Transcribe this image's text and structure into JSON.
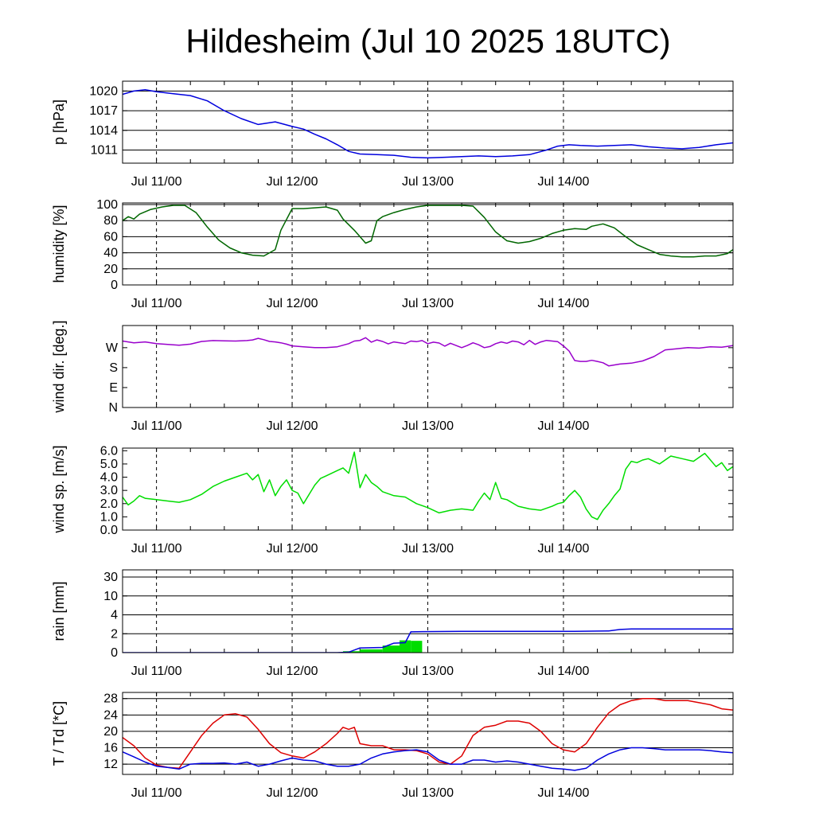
{
  "chart_data": {
    "title": "Hildesheim (Jul 10 2025 18UTC)",
    "type": "line",
    "x_axis": {
      "unit": "hours since Jul 10 18UTC",
      "range": [
        0,
        108
      ],
      "tick_labels": [
        "Jul 11/00",
        "Jul 12/00",
        "Jul 13/00",
        "Jul 14/00"
      ],
      "tick_hours": [
        6,
        30,
        54,
        78
      ]
    },
    "panels": [
      {
        "id": "pressure",
        "type": "line",
        "ylabel": "p [hPa]",
        "ylim": [
          1009,
          1021.5
        ],
        "yticks": [
          1011,
          1014,
          1017,
          1020
        ],
        "ytick_labels": [
          "1011",
          "1014",
          "1017",
          "1020"
        ],
        "grid": true,
        "series": [
          {
            "color": "#0000dd",
            "x": [
              0,
              2,
              4,
              6,
              9,
              12,
              15,
              18,
              21,
              24,
              27,
              30,
              32,
              34,
              36,
              38,
              40,
              42,
              45,
              48,
              51,
              54,
              57,
              60,
              63,
              66,
              69,
              72,
              75,
              77,
              79,
              81,
              84,
              87,
              90,
              93,
              96,
              99,
              102,
              105,
              108
            ],
            "y": [
              1019.5,
              1020.0,
              1020.2,
              1019.9,
              1019.6,
              1019.3,
              1018.5,
              1017.0,
              1015.8,
              1014.9,
              1015.3,
              1014.6,
              1014.2,
              1013.4,
              1012.7,
              1011.8,
              1010.8,
              1010.4,
              1010.3,
              1010.2,
              1009.9,
              1009.8,
              1009.9,
              1010.0,
              1010.1,
              1010.0,
              1010.1,
              1010.3,
              1011.0,
              1011.6,
              1011.8,
              1011.7,
              1011.6,
              1011.7,
              1011.8,
              1011.5,
              1011.3,
              1011.2,
              1011.4,
              1011.8,
              1012.1
            ]
          }
        ]
      },
      {
        "id": "humidity",
        "type": "line",
        "ylabel": "humidity [%]",
        "ylim": [
          0,
          102
        ],
        "yticks": [
          0,
          20,
          40,
          60,
          80,
          100
        ],
        "ytick_labels": [
          "0",
          "20",
          "40",
          "60",
          "80",
          "100"
        ],
        "grid": true,
        "series": [
          {
            "color": "#006600",
            "x": [
              0,
              1,
              2,
              3,
              5,
              7,
              9,
              11,
              13,
              15,
              17,
              19,
              21,
              23,
              25,
              27,
              28,
              30,
              32,
              34,
              36,
              38,
              39,
              41,
              43,
              44,
              45,
              46,
              48,
              50,
              52,
              54,
              56,
              58,
              60,
              62,
              64,
              66,
              68,
              70,
              72,
              74,
              76,
              78,
              80,
              82,
              83,
              85,
              87,
              89,
              91,
              93,
              95,
              97,
              99,
              101,
              103,
              105,
              107,
              108
            ],
            "y": [
              80,
              85,
              82,
              88,
              94,
              97,
              99,
              99,
              90,
              72,
              56,
              46,
              40,
              37,
              36,
              44,
              68,
              95,
              95,
              96,
              97,
              93,
              82,
              68,
              52,
              55,
              80,
              85,
              90,
              94,
              97,
              99,
              99,
              99,
              99,
              98,
              84,
              66,
              55,
              52,
              54,
              58,
              64,
              68,
              70,
              69,
              73,
              76,
              71,
              60,
              50,
              44,
              38,
              36,
              35,
              35,
              36,
              36,
              39,
              44
            ]
          }
        ]
      },
      {
        "id": "wind_direction",
        "type": "line",
        "ylabel": "wind dir. [deg.]",
        "ylim": [
          0,
          370
        ],
        "yticks": [
          0,
          90,
          180,
          270
        ],
        "ytick_labels": [
          "N",
          "E",
          "S",
          "W"
        ],
        "grid": false,
        "series": [
          {
            "color": "#9900cc",
            "x": [
              0,
              2,
              4,
              6,
              8,
              10,
              12,
              14,
              16,
              18,
              20,
              22,
              23,
              24,
              25,
              26,
              27,
              28,
              29,
              30,
              32,
              34,
              36,
              38,
              40,
              41,
              42,
              43,
              44,
              45,
              46,
              47,
              48,
              50,
              51,
              52,
              53,
              54,
              55,
              56,
              57,
              58,
              60,
              61,
              62,
              63,
              64,
              65,
              66,
              67,
              68,
              69,
              70,
              71,
              72,
              73,
              74,
              75,
              77,
              78,
              79,
              80,
              81,
              82,
              83,
              84,
              85,
              86,
              88,
              90,
              92,
              94,
              96,
              98,
              100,
              102,
              104,
              106,
              107,
              108
            ],
            "y": [
              300,
              292,
              296,
              288,
              285,
              281,
              286,
              298,
              302,
              301,
              300,
              302,
              305,
              312,
              306,
              298,
              296,
              292,
              286,
              278,
              274,
              270,
              270,
              274,
              288,
              300,
              303,
              315,
              295,
              305,
              298,
              287,
              296,
              288,
              300,
              297,
              302,
              288,
              295,
              291,
              277,
              290,
              270,
              280,
              292,
              283,
              270,
              275,
              288,
              296,
              290,
              300,
              296,
              283,
              303,
              285,
              296,
              303,
              297,
              278,
              255,
              212,
              208,
              208,
              213,
              208,
              202,
              188,
              196,
              200,
              210,
              230,
              260,
              265,
              270,
              268,
              274,
              272,
              276,
              280
            ]
          }
        ]
      },
      {
        "id": "wind_speed",
        "type": "line",
        "ylabel": "wind sp. [m/s]",
        "ylim": [
          0,
          6.2
        ],
        "yticks": [
          0,
          1,
          2,
          3,
          4,
          5,
          6
        ],
        "ytick_labels": [
          "0.0",
          "1.0",
          "2.0",
          "3.0",
          "4.0",
          "5.0",
          "6.0"
        ],
        "grid": false,
        "series": [
          {
            "color": "#00dd00",
            "x": [
              0,
              1,
              2,
              3,
              4,
              6,
              8,
              10,
              12,
              14,
              16,
              18,
              20,
              22,
              23,
              24,
              25,
              26,
              27,
              28,
              29,
              30,
              31,
              32,
              33,
              34,
              35,
              36,
              37,
              38,
              39,
              40,
              41,
              42,
              43,
              44,
              45,
              46,
              48,
              50,
              52,
              54,
              56,
              58,
              60,
              62,
              63,
              64,
              65,
              66,
              67,
              68,
              70,
              72,
              74,
              76,
              77,
              78,
              79,
              80,
              81,
              82,
              83,
              84,
              85,
              86,
              87,
              88,
              89,
              90,
              91,
              92,
              93,
              95,
              97,
              99,
              101,
              103,
              105,
              106,
              107,
              108
            ],
            "y": [
              2.5,
              1.9,
              2.2,
              2.6,
              2.4,
              2.3,
              2.2,
              2.1,
              2.3,
              2.7,
              3.3,
              3.7,
              4.0,
              4.3,
              3.8,
              4.2,
              2.9,
              3.8,
              2.6,
              3.3,
              3.8,
              3.0,
              2.8,
              2.0,
              2.7,
              3.4,
              3.9,
              4.1,
              4.3,
              4.5,
              4.7,
              4.3,
              5.9,
              3.2,
              4.2,
              3.6,
              3.3,
              2.9,
              2.6,
              2.5,
              2.0,
              1.7,
              1.3,
              1.5,
              1.6,
              1.5,
              2.2,
              2.8,
              2.3,
              3.6,
              2.4,
              2.3,
              1.8,
              1.6,
              1.5,
              1.8,
              2.0,
              2.1,
              2.6,
              3.0,
              2.5,
              1.6,
              1.0,
              0.8,
              1.5,
              2.0,
              2.6,
              3.1,
              4.6,
              5.2,
              5.1,
              5.3,
              5.4,
              5.0,
              5.6,
              5.4,
              5.2,
              5.8,
              4.8,
              5.1,
              4.5,
              4.8
            ]
          }
        ]
      },
      {
        "id": "rain",
        "type": "bar+line",
        "ylabel": "rain [mm]",
        "scale": "custom (0, 2, 4, 10, 30 evenly spaced)",
        "yticks": [
          0,
          2,
          4,
          10,
          30
        ],
        "ytick_labels": [
          "0",
          "2",
          "4",
          "10",
          "30"
        ],
        "grid": true,
        "bars": {
          "color": "#00dd00",
          "segments": [
            {
              "x0": 39,
              "x1": 42,
              "value": 0.15
            },
            {
              "x0": 42,
              "x1": 46,
              "value": 0.35
            },
            {
              "x0": 46,
              "x1": 49,
              "value": 0.75
            },
            {
              "x0": 49,
              "x1": 51,
              "value": 1.3
            },
            {
              "x0": 51,
              "x1": 53,
              "value": 1.25
            },
            {
              "x0": 86,
              "x1": 90,
              "value": 0.05
            }
          ]
        },
        "series": [
          {
            "color": "#0000dd",
            "x": [
              0,
              38,
              40,
              42,
              46,
              48,
              50,
              51,
              53,
              60,
              70,
              80,
              86,
              88,
              90,
              108
            ],
            "y": [
              0,
              0,
              0.05,
              0.5,
              0.55,
              1.0,
              1.05,
              2.2,
              2.22,
              2.25,
              2.25,
              2.26,
              2.3,
              2.45,
              2.5,
              2.5
            ]
          }
        ]
      },
      {
        "id": "temperature",
        "type": "line",
        "ylabel": "T / Td [*C]",
        "ylim": [
          9.5,
          29.5
        ],
        "yticks": [
          12,
          16,
          20,
          24,
          28
        ],
        "ytick_labels": [
          "12",
          "16",
          "20",
          "24",
          "28"
        ],
        "grid": true,
        "series": [
          {
            "color": "#dd0000",
            "x": [
              0,
              2,
              4,
              6,
              8,
              10,
              12,
              14,
              16,
              18,
              20,
              22,
              24,
              26,
              28,
              30,
              32,
              34,
              36,
              38,
              39,
              40,
              41,
              42,
              44,
              46,
              48,
              50,
              52,
              54,
              56,
              58,
              60,
              62,
              64,
              66,
              68,
              70,
              72,
              74,
              76,
              78,
              80,
              82,
              84,
              86,
              88,
              90,
              92,
              94,
              96,
              98,
              100,
              102,
              104,
              106,
              108
            ],
            "y": [
              18.5,
              16.5,
              13.5,
              11.8,
              11.2,
              11.0,
              15.0,
              19.0,
              22.0,
              24.0,
              24.3,
              23.5,
              20.5,
              17.0,
              14.8,
              14.0,
              13.5,
              15.0,
              17.0,
              19.5,
              21.0,
              20.5,
              21.0,
              17.0,
              16.5,
              16.5,
              15.5,
              15.5,
              15.3,
              14.5,
              12.5,
              12.0,
              14.0,
              19.0,
              21.0,
              21.5,
              22.5,
              22.5,
              22.0,
              20.0,
              17.0,
              15.5,
              15.0,
              17.0,
              21.0,
              24.5,
              26.5,
              27.5,
              28.0,
              28.0,
              27.5,
              27.5,
              27.5,
              27.0,
              26.5,
              25.5,
              25.2
            ]
          },
          {
            "color": "#0000dd",
            "x": [
              0,
              2,
              4,
              6,
              8,
              10,
              12,
              14,
              16,
              18,
              20,
              22,
              24,
              26,
              28,
              30,
              32,
              34,
              36,
              38,
              40,
              42,
              44,
              46,
              48,
              50,
              52,
              54,
              56,
              58,
              60,
              62,
              64,
              66,
              68,
              70,
              72,
              74,
              76,
              78,
              80,
              82,
              84,
              86,
              88,
              90,
              92,
              94,
              96,
              98,
              100,
              102,
              104,
              106,
              108
            ],
            "y": [
              15.0,
              13.8,
              12.5,
              11.5,
              11.2,
              10.8,
              12.0,
              12.2,
              12.2,
              12.3,
              12.0,
              12.5,
              11.5,
              12.0,
              12.8,
              13.5,
              13.0,
              12.8,
              12.0,
              11.5,
              11.5,
              12.0,
              13.5,
              14.5,
              15.0,
              15.3,
              15.5,
              15.0,
              13.0,
              12.0,
              12.0,
              13.0,
              13.0,
              12.5,
              12.8,
              12.5,
              12.0,
              11.5,
              11.0,
              10.8,
              10.5,
              11.0,
              13.0,
              14.5,
              15.5,
              16.0,
              16.0,
              15.8,
              15.5,
              15.5,
              15.5,
              15.5,
              15.3,
              15.0,
              14.8
            ]
          }
        ]
      }
    ]
  }
}
